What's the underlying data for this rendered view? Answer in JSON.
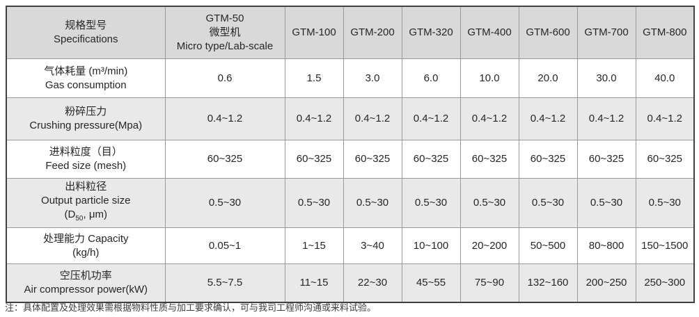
{
  "table": {
    "header": {
      "col1_zh": "规格型号",
      "col1_en": "Specifications",
      "col2_lines": [
        "GTM-50",
        "微型机",
        "Micro type/Lab-scale"
      ],
      "models": [
        "GTM-100",
        "GTM-200",
        "GTM-320",
        "GTM-400",
        "GTM-600",
        "GTM-700",
        "GTM-800"
      ]
    },
    "rows": [
      {
        "label_zh": "气体耗量 (m³/min)",
        "label_en": "Gas consumption",
        "values": [
          "0.6",
          "1.5",
          "3.0",
          "6.0",
          "10.0",
          "20.0",
          "30.0",
          "40.0"
        ]
      },
      {
        "label_zh": "粉碎压力",
        "label_en": "Crushing pressure(Mpa)",
        "values": [
          "0.4~1.2",
          "0.4~1.2",
          "0.4~1.2",
          "0.4~1.2",
          "0.4~1.2",
          "0.4~1.2",
          "0.4~1.2",
          "0.4~1.2"
        ]
      },
      {
        "label_zh": "进料粒度（目）",
        "label_en": "Feed size (mesh)",
        "values": [
          "60~325",
          "60~325",
          "60~325",
          "60~325",
          "60~325",
          "60~325",
          "60~325",
          "60~325"
        ]
      },
      {
        "label_zh": "出料粒径",
        "label_en": "Output particle size",
        "label_line3": {
          "pre": "(D",
          "sub": "50",
          "post": ", μm)"
        },
        "values": [
          "0.5~30",
          "0.5~30",
          "0.5~30",
          "0.5~30",
          "0.5~30",
          "0.5~30",
          "0.5~30",
          "0.5~30"
        ]
      },
      {
        "label_zh": "处理能力 Capacity",
        "label_en": "(kg/h)",
        "values": [
          "0.05~1",
          "1~15",
          "3~40",
          "10~100",
          "20~200",
          "50~500",
          "80~800",
          "150~1500"
        ]
      },
      {
        "label_zh": "空压机功率",
        "label_en": "Air compressor power(kW)",
        "values": [
          "5.5~7.5",
          "11~15",
          "22~30",
          "45~55",
          "75~90",
          "132~160",
          "200~250",
          "250~300"
        ]
      }
    ]
  },
  "note": "注：具体配置及处理效果需根据物料性质与加工要求确认，可与我司工程师沟通或来料试验。",
  "colors": {
    "header_bg": "#d9d9d9",
    "stripe_bg": "#e9e9e9",
    "border_outer": "#404040",
    "border_inner": "#9a9a9a",
    "text": "#262626"
  }
}
